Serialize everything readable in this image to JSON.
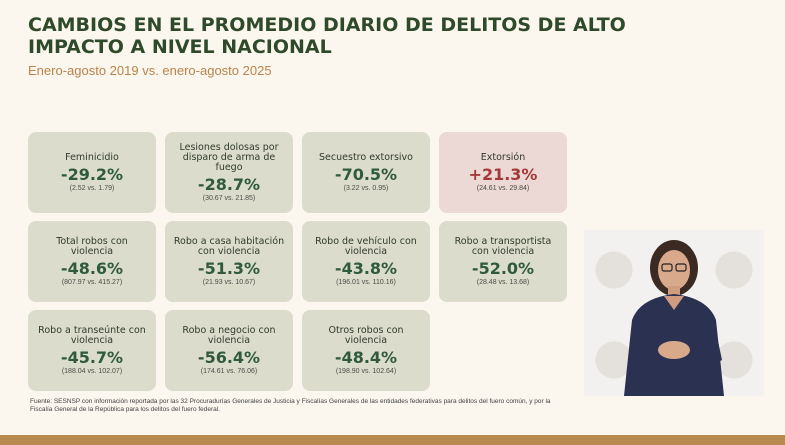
{
  "header": {
    "title": "CAMBIOS EN EL PROMEDIO DIARIO DE DELITOS DE ALTO IMPACTO A NIVEL NACIONAL",
    "subtitle": "Enero-agosto 2019 vs. enero-agosto 2025"
  },
  "cards": [
    {
      "label": "Feminicidio",
      "pct": "-29.2%",
      "detail": "(2.52 vs. 1.79)"
    },
    {
      "label": "Lesiones dolosas por disparo de arma de fuego",
      "pct": "-28.7%",
      "detail": "(30.67 vs. 21.85)"
    },
    {
      "label": "Secuestro extorsivo",
      "pct": "-70.5%",
      "detail": "(3.22 vs. 0.95)"
    },
    {
      "label": "Extorsión",
      "pct": "+21.3%",
      "detail": "(24.61 vs. 29.84)"
    },
    {
      "label": "Total robos con violencia",
      "pct": "-48.6%",
      "detail": "(807.97 vs. 415.27)"
    },
    {
      "label": "Robo a casa habitación con violencia",
      "pct": "-51.3%",
      "detail": "(21.93 vs. 10.67)"
    },
    {
      "label": "Robo de vehículo con violencia",
      "pct": "-43.8%",
      "detail": "(196.01 vs. 110.16)"
    },
    {
      "label": "Robo a transportista con violencia",
      "pct": "-52.0%",
      "detail": "(28.48 vs. 13.68)"
    },
    {
      "label": "Robo a transeúnte con violencia",
      "pct": "-45.7%",
      "detail": "(188.04 vs. 102.07)"
    },
    {
      "label": "Robo a negocio con violencia",
      "pct": "-56.4%",
      "detail": "(174.61 vs. 76.06)"
    },
    {
      "label": "Otros robos con violencia",
      "pct": "-48.4%",
      "detail": "(198.90 vs. 102.64)"
    }
  ],
  "footer": {
    "source": "Fuente: SESNSP con información reportada por las 32 Procuradurías Generales de Justicia y Fiscalías Generales de las entidades federativas para delitos del fuero común, y por la Fiscalía General de la República para los delitos del fuero federal."
  },
  "colors": {
    "title": "#2e4a2a",
    "subtitle": "#b9834a",
    "card_bg": "#dcdccd",
    "card_bg_increase": "#ecd8d4",
    "decrease": "#2f5a3b",
    "increase": "#a33a3a"
  }
}
